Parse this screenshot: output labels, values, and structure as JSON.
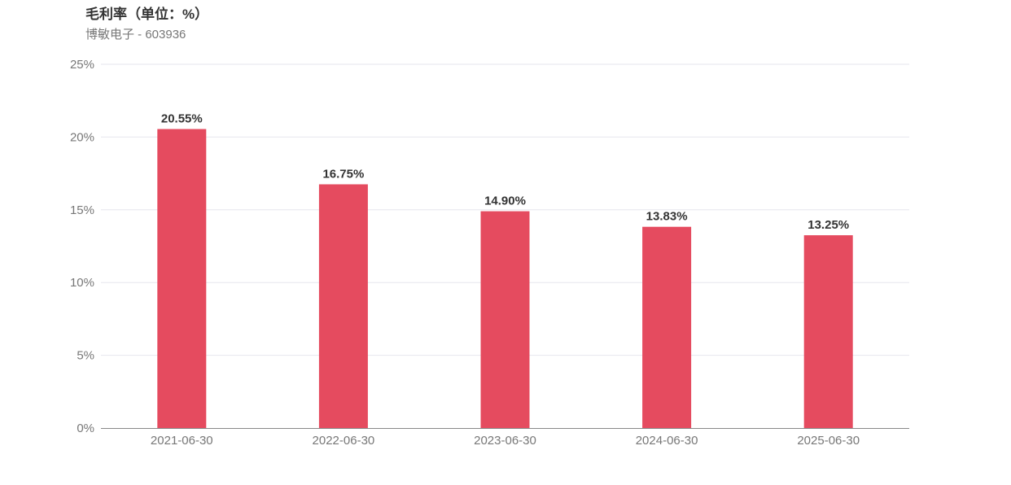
{
  "chart_data": {
    "type": "bar",
    "title": "毛利率（单位：%）",
    "subtitle": "博敏电子 - 603936",
    "categories": [
      "2021-06-30",
      "2022-06-30",
      "2023-06-30",
      "2024-06-30",
      "2025-06-30"
    ],
    "values": [
      20.55,
      16.75,
      14.9,
      13.83,
      13.25
    ],
    "data_labels": [
      "20.55%",
      "16.75%",
      "14.90%",
      "13.83%",
      "13.25%"
    ],
    "ylim": [
      0,
      25
    ],
    "yticks": [
      0,
      5,
      10,
      15,
      20,
      25
    ],
    "ytick_labels": [
      "0%",
      "5%",
      "10%",
      "15%",
      "20%",
      "25%"
    ],
    "grid": true,
    "bar_color": "#e54b5f"
  }
}
